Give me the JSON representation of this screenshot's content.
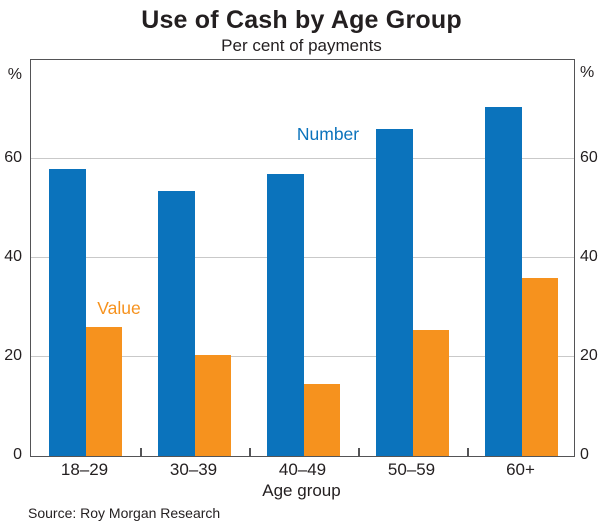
{
  "chart_data": {
    "type": "bar",
    "title": "Use of Cash by Age Group",
    "subtitle": "Per cent of payments",
    "unit": "%",
    "xlabel": "Age group",
    "categories": [
      "18–29",
      "30–39",
      "40–49",
      "50–59",
      "60+"
    ],
    "series": [
      {
        "name": "Number",
        "color": "#0b73bc",
        "values": [
          58,
          53.5,
          57,
          66,
          70.5
        ]
      },
      {
        "name": "Value",
        "color": "#f6921e",
        "values": [
          26,
          20.5,
          14.5,
          25.5,
          36
        ]
      }
    ],
    "ylim": [
      0,
      80
    ],
    "yticks": [
      0,
      20,
      40,
      60
    ],
    "grid": "horizontal",
    "legend_position": "in-plot text annotations"
  },
  "footer": {
    "source": "Source: Roy Morgan Research"
  }
}
